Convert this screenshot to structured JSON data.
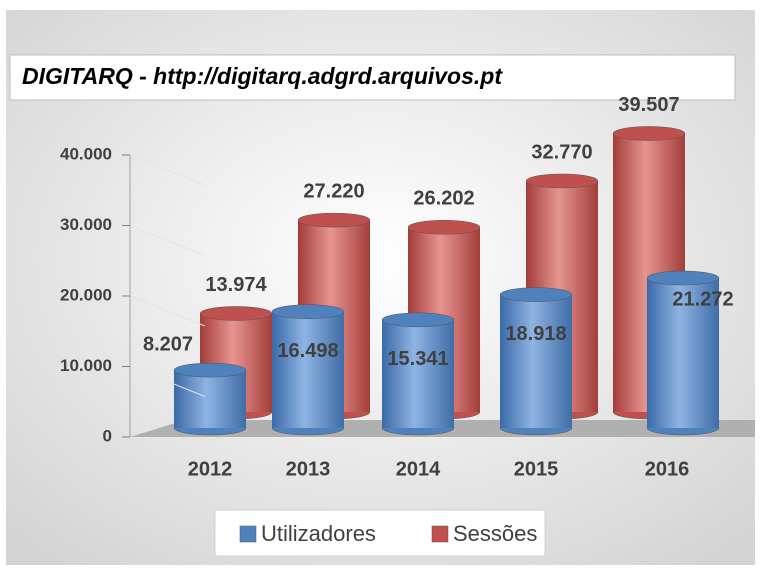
{
  "chart_data": {
    "type": "bar3d",
    "title": "DIGITARQ - http://digitarq.adgrd.arquivos.pt",
    "categories": [
      "2012",
      "2013",
      "2014",
      "2015",
      "2016"
    ],
    "series": [
      {
        "name": "Utilizadores",
        "color": "#4f81bd",
        "values": [
          8207,
          16498,
          15341,
          18918,
          21272
        ],
        "value_labels": [
          "8.207",
          "16.498",
          "15.341",
          "18.918",
          "21.272"
        ]
      },
      {
        "name": "Sessões",
        "color": "#c0504d",
        "values": [
          13974,
          27220,
          26202,
          32770,
          39507
        ],
        "value_labels": [
          "13.974",
          "27.220",
          "26.202",
          "32.770",
          "39.507"
        ]
      }
    ],
    "ylim": [
      0,
      40000
    ],
    "yticks": [
      0,
      {
        "value": 10000,
        "label": "10.000"
      },
      {
        "value": 20000,
        "label": "20.000"
      },
      {
        "value": 30000,
        "label": "30.000"
      },
      {
        "value": 40000,
        "label": "40.000"
      }
    ],
    "legend": "bottom"
  }
}
